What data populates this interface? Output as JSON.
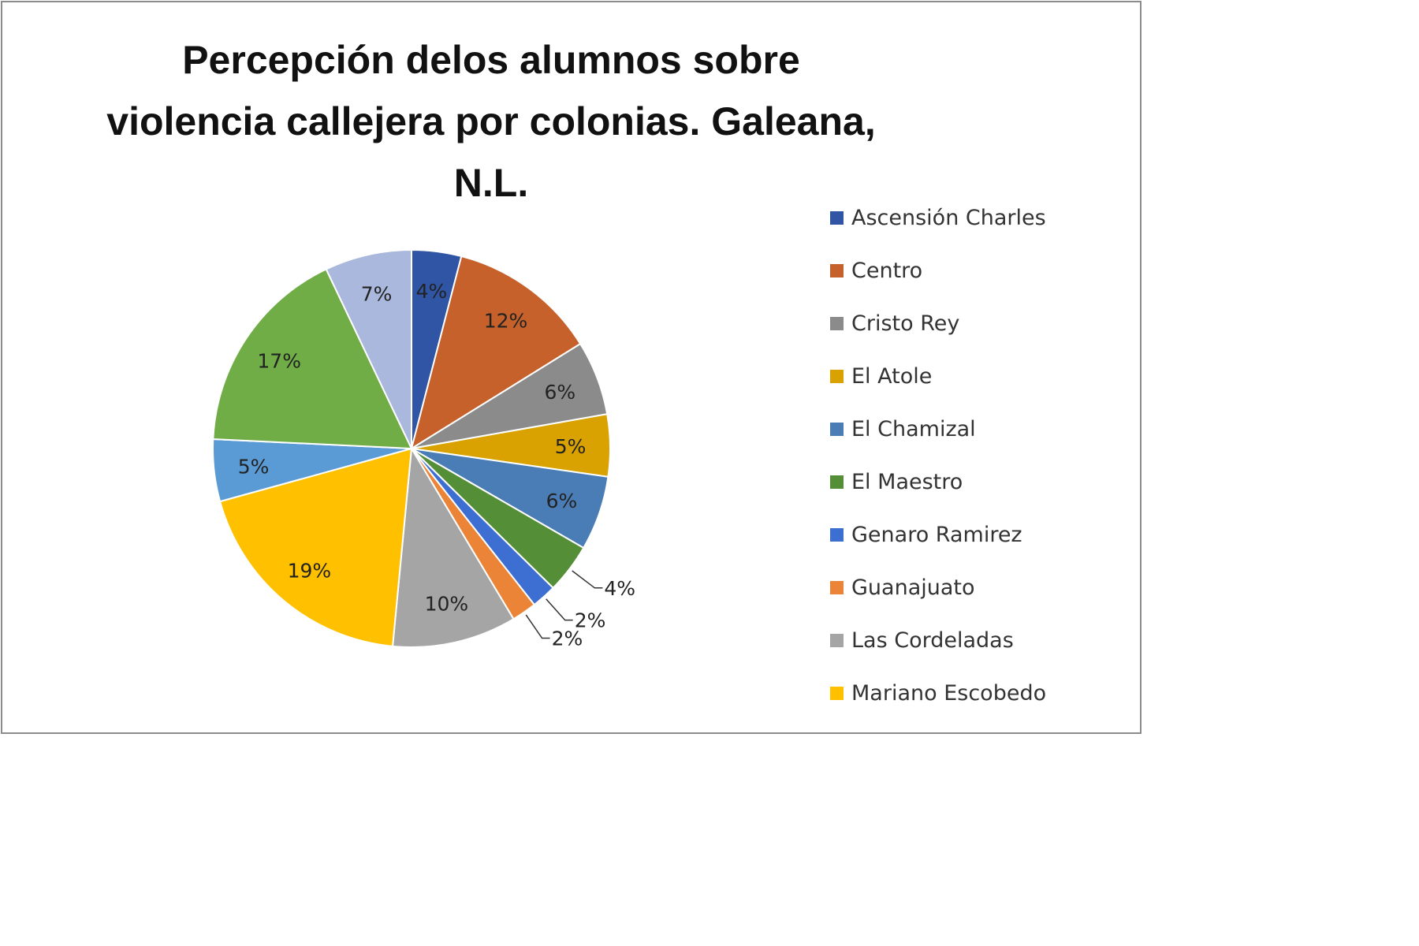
{
  "chart_data": {
    "type": "pie",
    "title": "Percepción delos alumnos sobre  violencia callejera por colonias. Galeana, N.L.",
    "legend_position": "right",
    "slices": [
      {
        "name": "Ascensión Charles",
        "value": 4,
        "label": "4%",
        "color": "#2F55A4"
      },
      {
        "name": "Centro",
        "value": 12,
        "label": "12%",
        "color": "#C6612B"
      },
      {
        "name": "Cristo Rey",
        "value": 6,
        "label": "6%",
        "color": "#8B8B8B"
      },
      {
        "name": "El Atole",
        "value": 5,
        "label": "5%",
        "color": "#D9A200"
      },
      {
        "name": "El Chamizal",
        "value": 6,
        "label": "6%",
        "color": "#4A7DB5"
      },
      {
        "name": "El Maestro",
        "value": 4,
        "label": "4%",
        "color": "#548E37"
      },
      {
        "name": "Genaro Ramirez",
        "value": 2,
        "label": "2%",
        "color": "#3D6ED1"
      },
      {
        "name": "Guanajuato",
        "value": 2,
        "label": "2%",
        "color": "#EC8437"
      },
      {
        "name": "Las Cordeladas",
        "value": 10,
        "label": "10%",
        "color": "#A5A5A5"
      },
      {
        "name": "Mariano Escobedo",
        "value": 19,
        "label": "19%",
        "color": "#FFC000"
      },
      {
        "name": "",
        "value": 5,
        "label": "5%",
        "color": "#5B9BD5"
      },
      {
        "name": "",
        "value": 17,
        "label": "17%",
        "color": "#70AD47"
      },
      {
        "name": "",
        "value": 7,
        "label": "7%",
        "color": "#A9B8DC"
      }
    ],
    "legend_entries": [
      "Ascensión Charles",
      "Centro",
      "Cristo Rey",
      "El Atole",
      "El Chamizal",
      "El Maestro",
      "Genaro Ramirez",
      "Guanajuato",
      "Las Cordeladas",
      "Mariano Escobedo"
    ]
  }
}
